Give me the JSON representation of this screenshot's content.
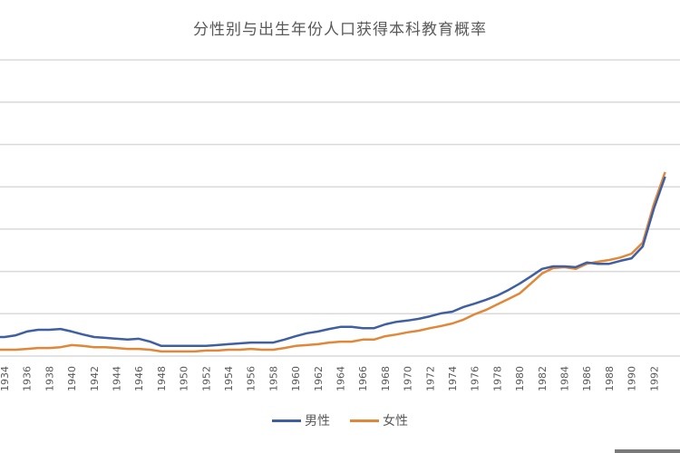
{
  "chart_data": {
    "type": "line",
    "title": "分性别与出生年份人口获得本科教育概率",
    "xlabel": "",
    "ylabel": "",
    "ylim": [
      0,
      0.7
    ],
    "grid": true,
    "legend_position": "bottom",
    "x_tick_labels": [
      "1934",
      "1936",
      "1938",
      "1940",
      "1942",
      "1944",
      "1946",
      "1948",
      "1950",
      "1952",
      "1954",
      "1956",
      "1958",
      "1960",
      "1962",
      "1964",
      "1966",
      "1968",
      "1970",
      "1972",
      "1974",
      "1976",
      "1978",
      "1980",
      "1982",
      "1984",
      "1986",
      "1988",
      "1990",
      "1992"
    ],
    "x": [
      1933,
      1934,
      1935,
      1936,
      1937,
      1938,
      1939,
      1940,
      1941,
      1942,
      1943,
      1944,
      1945,
      1946,
      1947,
      1948,
      1949,
      1950,
      1951,
      1952,
      1953,
      1954,
      1955,
      1956,
      1957,
      1958,
      1959,
      1960,
      1961,
      1962,
      1963,
      1964,
      1965,
      1966,
      1967,
      1968,
      1969,
      1970,
      1971,
      1972,
      1973,
      1974,
      1975,
      1976,
      1977,
      1978,
      1979,
      1980,
      1981,
      1982,
      1983,
      1984,
      1985,
      1986,
      1987,
      1988,
      1989,
      1990,
      1991,
      1992,
      1993
    ],
    "series": [
      {
        "name": "男性",
        "color": "#3F5FA0",
        "values": [
          0.045,
          0.045,
          0.049,
          0.058,
          0.062,
          0.062,
          0.064,
          0.058,
          0.051,
          0.045,
          0.043,
          0.041,
          0.039,
          0.041,
          0.034,
          0.024,
          0.024,
          0.024,
          0.024,
          0.024,
          0.026,
          0.028,
          0.03,
          0.032,
          0.032,
          0.032,
          0.039,
          0.047,
          0.054,
          0.058,
          0.064,
          0.069,
          0.069,
          0.066,
          0.066,
          0.075,
          0.081,
          0.084,
          0.088,
          0.094,
          0.101,
          0.105,
          0.116,
          0.124,
          0.133,
          0.143,
          0.156,
          0.171,
          0.188,
          0.206,
          0.212,
          0.212,
          0.21,
          0.221,
          0.218,
          0.218,
          0.225,
          0.231,
          0.259,
          0.349,
          0.424
        ]
      },
      {
        "name": "女性",
        "color": "#E0873A",
        "values": [
          0.015,
          0.015,
          0.015,
          0.017,
          0.019,
          0.019,
          0.021,
          0.026,
          0.024,
          0.021,
          0.021,
          0.019,
          0.017,
          0.017,
          0.015,
          0.011,
          0.011,
          0.011,
          0.011,
          0.013,
          0.013,
          0.015,
          0.015,
          0.017,
          0.015,
          0.015,
          0.019,
          0.024,
          0.026,
          0.028,
          0.032,
          0.034,
          0.034,
          0.039,
          0.039,
          0.047,
          0.051,
          0.056,
          0.06,
          0.066,
          0.071,
          0.077,
          0.086,
          0.099,
          0.109,
          0.122,
          0.135,
          0.148,
          0.171,
          0.195,
          0.208,
          0.21,
          0.206,
          0.218,
          0.223,
          0.227,
          0.233,
          0.242,
          0.268,
          0.36,
          0.435
        ]
      }
    ]
  },
  "legend": {
    "male_label": "男性",
    "female_label": "女性"
  },
  "colors": {
    "male": "#3F5FA0",
    "female": "#E0873A",
    "grid": "#D9D9D9",
    "text": "#595959"
  }
}
